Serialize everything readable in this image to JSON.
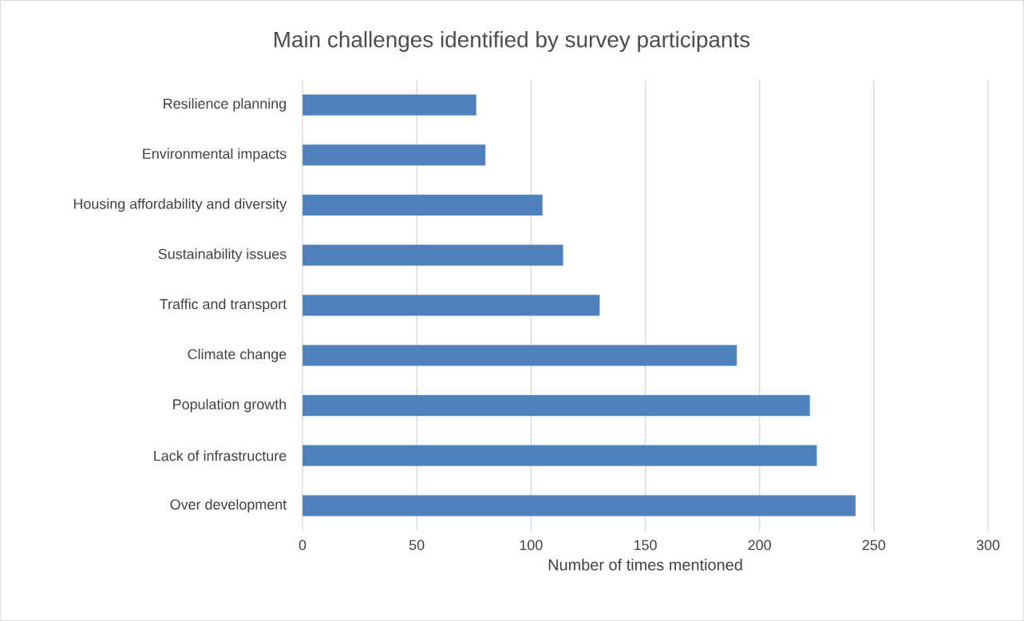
{
  "chart_data": {
    "type": "bar",
    "orientation": "horizontal",
    "title": "Main challenges identified by survey participants",
    "xlabel": "Number of times mentioned",
    "categories": [
      "Resilience planning",
      "Environmental impacts",
      "Housing affordability and diversity",
      "Sustainability issues",
      "Traffic and transport",
      "Climate change",
      "Population growth",
      "Lack of infrastructure",
      "Over development"
    ],
    "values": [
      76,
      80,
      105,
      114,
      130,
      190,
      222,
      225,
      242
    ],
    "color": "#4f81bd",
    "xlim": [
      0,
      300
    ],
    "xticks": [
      0,
      50,
      100,
      150,
      200,
      250,
      300
    ],
    "grid": "x"
  }
}
